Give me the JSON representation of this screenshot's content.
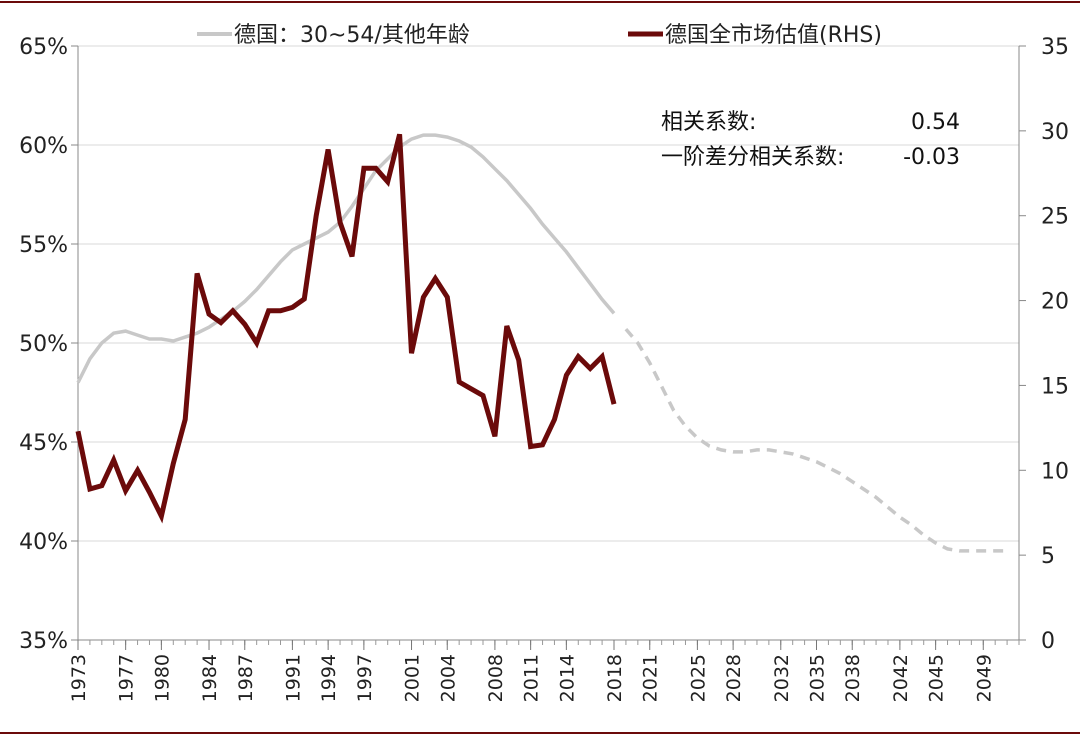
{
  "chart_data": {
    "type": "line",
    "title": "",
    "legend": {
      "placement": "top",
      "entries": [
        "德国：30~54/其他年龄",
        "德国全市场估值(RHS)"
      ]
    },
    "x_tick_labels": [
      "1973",
      "1977",
      "1980",
      "1984",
      "1987",
      "1991",
      "1994",
      "1997",
      "2001",
      "2004",
      "2008",
      "2011",
      "2014",
      "2018",
      "2021",
      "2025",
      "2028",
      "2032",
      "2035",
      "2038",
      "2042",
      "2045",
      "2049"
    ],
    "y_left": {
      "range": [
        35,
        65
      ],
      "ticks": [
        35,
        40,
        45,
        50,
        55,
        60,
        65
      ],
      "tick_labels": [
        "35%",
        "40%",
        "45%",
        "50%",
        "55%",
        "60%",
        "65%"
      ]
    },
    "y_right": {
      "range": [
        0,
        35
      ],
      "ticks": [
        0,
        5,
        10,
        15,
        20,
        25,
        30,
        35
      ],
      "tick_labels": [
        "0",
        "5",
        "10",
        "15",
        "20",
        "25",
        "30",
        "35"
      ]
    },
    "annotations": [
      {
        "label": "相关系数:",
        "value": "0.54"
      },
      {
        "label": "一阶差分相关系数:",
        "value": "-0.03"
      }
    ],
    "series": [
      {
        "name": "德国：30~54/其他年龄",
        "axis": "left",
        "color": "#c8c8c8",
        "style": "solid",
        "x": [
          1973,
          1974,
          1975,
          1976,
          1977,
          1978,
          1979,
          1980,
          1981,
          1982,
          1983,
          1984,
          1985,
          1986,
          1987,
          1988,
          1989,
          1990,
          1991,
          1992,
          1993,
          1994,
          1995,
          1996,
          1997,
          1998,
          1999,
          2000,
          2001,
          2002,
          2003,
          2004,
          2005,
          2006,
          2007,
          2008,
          2009,
          2010,
          2011,
          2012,
          2013,
          2014,
          2015,
          2016,
          2017,
          2018
        ],
        "values": [
          48.0,
          49.2,
          50.0,
          50.5,
          50.6,
          50.4,
          50.2,
          50.2,
          50.1,
          50.3,
          50.5,
          50.8,
          51.2,
          51.6,
          52.1,
          52.7,
          53.4,
          54.1,
          54.7,
          55.0,
          55.3,
          55.6,
          56.1,
          56.9,
          57.8,
          58.7,
          59.3,
          59.9,
          60.3,
          60.5,
          60.5,
          60.4,
          60.2,
          59.9,
          59.4,
          58.8,
          58.2,
          57.5,
          56.8,
          56.0,
          55.3,
          54.6,
          53.8,
          53.0,
          52.2,
          51.5
        ]
      },
      {
        "name": "德国：30~54/其他年龄 (预测)",
        "axis": "left",
        "color": "#c8c8c8",
        "style": "dashed",
        "x": [
          2019,
          2020,
          2021,
          2022,
          2023,
          2024,
          2025,
          2026,
          2027,
          2028,
          2029,
          2030,
          2031,
          2032,
          2033,
          2034,
          2035,
          2036,
          2037,
          2038,
          2039,
          2040,
          2041,
          2042,
          2043,
          2044,
          2045,
          2046,
          2047,
          2048,
          2049,
          2050,
          2051
        ],
        "values": [
          50.7,
          50.0,
          49.0,
          47.8,
          46.6,
          45.8,
          45.2,
          44.8,
          44.6,
          44.5,
          44.5,
          44.6,
          44.6,
          44.5,
          44.4,
          44.2,
          44.0,
          43.7,
          43.4,
          43.0,
          42.6,
          42.2,
          41.7,
          41.2,
          40.8,
          40.3,
          39.9,
          39.6,
          39.5,
          39.5,
          39.5,
          39.5,
          39.5
        ]
      },
      {
        "name": "德国全市场估值(RHS)",
        "axis": "right",
        "color": "#6b0a0a",
        "style": "solid",
        "x": [
          1973,
          1974,
          1975,
          1976,
          1977,
          1978,
          1979,
          1980,
          1981,
          1982,
          1983,
          1984,
          1985,
          1986,
          1987,
          1988,
          1989,
          1990,
          1991,
          1992,
          1993,
          1994,
          1995,
          1996,
          1997,
          1998,
          1999,
          2000,
          2001,
          2002,
          2003,
          2004,
          2005,
          2006,
          2007,
          2008,
          2009,
          2010,
          2011,
          2012,
          2013,
          2014,
          2015,
          2016,
          2017,
          2018
        ],
        "values": [
          12.3,
          8.9,
          9.1,
          10.6,
          8.8,
          10.0,
          8.7,
          7.3,
          10.4,
          13.0,
          21.6,
          19.2,
          18.7,
          19.4,
          18.6,
          17.5,
          19.4,
          19.4,
          19.6,
          20.1,
          25.0,
          28.9,
          24.6,
          22.6,
          27.8,
          27.8,
          27.0,
          29.8,
          16.9,
          20.2,
          21.3,
          20.2,
          15.2,
          14.8,
          14.4,
          12.0,
          18.5,
          16.5,
          11.4,
          11.5,
          13.0,
          15.6,
          16.7,
          16.0,
          16.7,
          13.9
        ]
      }
    ]
  }
}
